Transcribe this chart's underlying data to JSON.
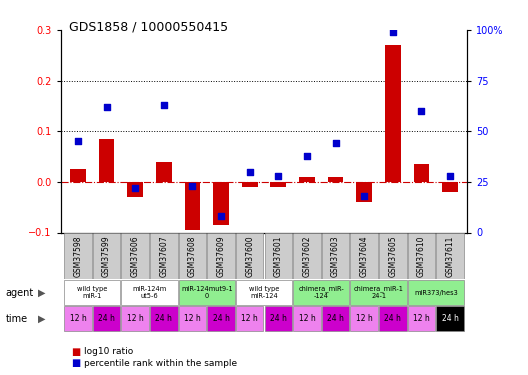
{
  "title": "GDS1858 / 10000550415",
  "samples": [
    "GSM37598",
    "GSM37599",
    "GSM37606",
    "GSM37607",
    "GSM37608",
    "GSM37609",
    "GSM37600",
    "GSM37601",
    "GSM37602",
    "GSM37603",
    "GSM37604",
    "GSM37605",
    "GSM37610",
    "GSM37611"
  ],
  "log10_ratio": [
    0.025,
    0.085,
    -0.03,
    0.04,
    -0.095,
    -0.085,
    -0.01,
    -0.01,
    0.01,
    0.01,
    -0.04,
    0.27,
    0.035,
    -0.02
  ],
  "percentile_rank": [
    45,
    62,
    22,
    63,
    23,
    8,
    30,
    28,
    38,
    44,
    18,
    99,
    60,
    28
  ],
  "agent_groups": [
    {
      "label": "wild type\nmiR-1",
      "cols": [
        0,
        1
      ],
      "color": "#ffffff"
    },
    {
      "label": "miR-124m\nut5-6",
      "cols": [
        2,
        3
      ],
      "color": "#ffffff"
    },
    {
      "label": "miR-124mut9-1\n0",
      "cols": [
        4,
        5
      ],
      "color": "#90ee90"
    },
    {
      "label": "wild type\nmiR-124",
      "cols": [
        6,
        7
      ],
      "color": "#ffffff"
    },
    {
      "label": "chimera_miR-\n-124",
      "cols": [
        8,
        9
      ],
      "color": "#90ee90"
    },
    {
      "label": "chimera_miR-1\n24-1",
      "cols": [
        10,
        11
      ],
      "color": "#90ee90"
    },
    {
      "label": "miR373/hes3",
      "cols": [
        12,
        13
      ],
      "color": "#90ee90"
    }
  ],
  "time_labels": [
    "12 h",
    "24 h",
    "12 h",
    "24 h",
    "12 h",
    "24 h",
    "12 h",
    "24 h",
    "12 h",
    "24 h",
    "12 h",
    "24 h",
    "12 h",
    "24 h"
  ],
  "time_bg_12h": "#ee82ee",
  "time_bg_24h": "#cc00cc",
  "time_last_24h": "#000000",
  "ylim_left": [
    -0.1,
    0.3
  ],
  "bar_color": "#cc0000",
  "scatter_color": "#0000cc",
  "hline_color": "#cc0000",
  "grid_color": "#000000",
  "bg_color": "#ffffff",
  "sample_bg": "#cccccc",
  "dotted_lines": [
    0.1,
    0.2
  ],
  "right_ticks": [
    0,
    25,
    50,
    75,
    100
  ],
  "left_ticks": [
    -0.1,
    0.0,
    0.1,
    0.2,
    0.3
  ]
}
